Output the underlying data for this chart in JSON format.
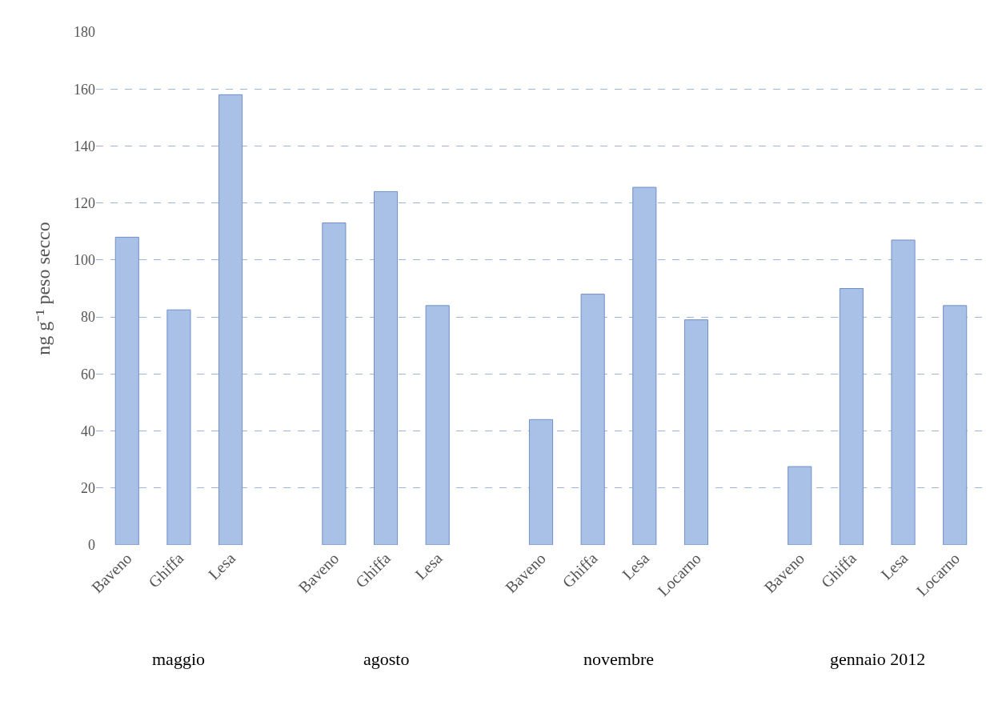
{
  "chart_data": {
    "type": "bar",
    "ylabel": "ng g⁻¹ peso secco",
    "categories": [
      "Baveno",
      "Ghiffa",
      "Lesa",
      null,
      "Baveno",
      "Ghiffa",
      "Lesa",
      null,
      "Baveno",
      "Ghiffa",
      "Lesa",
      "Locarno",
      null,
      "Baveno",
      "Ghiffa",
      "Lesa",
      "Locarno"
    ],
    "values": [
      108,
      82.5,
      158,
      null,
      113,
      124,
      84,
      null,
      44,
      88,
      125.5,
      79,
      null,
      27.5,
      90,
      107,
      84
    ],
    "color": "#a9c1e6",
    "ylim": [
      0,
      180
    ],
    "yticks": [
      0,
      20,
      40,
      60,
      80,
      100,
      120,
      140,
      160,
      180
    ],
    "grid": "y",
    "annotations": [
      "maggio",
      "agosto",
      "novembre",
      "gennaio 2012"
    ]
  }
}
